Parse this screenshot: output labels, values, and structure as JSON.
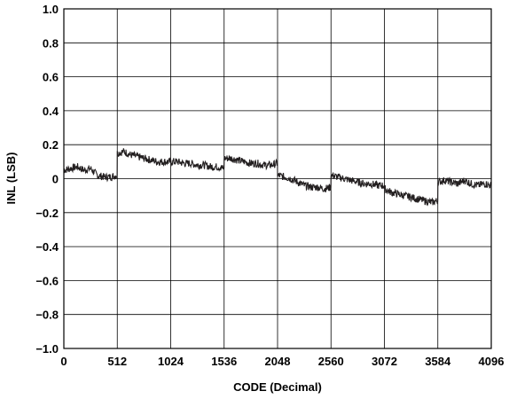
{
  "chart_data": {
    "type": "line",
    "title": "",
    "xlabel": "CODE (Decimal)",
    "ylabel": "INL (LSB)",
    "xlim": [
      0,
      4096
    ],
    "ylim": [
      -1.0,
      1.0
    ],
    "grid": true,
    "x_ticks": [
      0,
      512,
      1024,
      1536,
      2048,
      2560,
      3072,
      3584,
      4096
    ],
    "x_tick_labels": [
      "0",
      "512",
      "1024",
      "1536",
      "2048",
      "2560",
      "3072",
      "3584",
      "4096"
    ],
    "y_ticks": [
      -1.0,
      -0.8,
      -0.6,
      -0.4,
      -0.2,
      0,
      0.2,
      0.4,
      0.6,
      0.8,
      1.0
    ],
    "y_tick_labels": [
      "−1.0",
      "−0.8",
      "−0.6",
      "−0.4",
      "−0.2",
      "0",
      "0.2",
      "0.4",
      "0.6",
      "0.8",
      "1.0"
    ],
    "series": [
      {
        "color": "#231f20",
        "x": [
          0,
          64,
          128,
          192,
          256,
          320,
          384,
          448,
          511,
          512,
          576,
          640,
          704,
          768,
          832,
          896,
          960,
          1024,
          1088,
          1152,
          1216,
          1280,
          1344,
          1408,
          1472,
          1535,
          1536,
          1600,
          1664,
          1728,
          1792,
          1856,
          1920,
          1984,
          2047,
          2048,
          2112,
          2176,
          2240,
          2304,
          2368,
          2432,
          2496,
          2559,
          2560,
          2624,
          2688,
          2752,
          2816,
          2880,
          2944,
          3008,
          3071,
          3072,
          3136,
          3200,
          3264,
          3328,
          3392,
          3456,
          3520,
          3583,
          3584,
          3648,
          3712,
          3776,
          3840,
          3904,
          3968,
          4032,
          4096
        ],
        "y": [
          0.05,
          0.06,
          0.07,
          0.05,
          0.06,
          0.02,
          0.01,
          0.01,
          0.02,
          0.15,
          0.16,
          0.14,
          0.13,
          0.12,
          0.11,
          0.1,
          0.1,
          0.1,
          0.1,
          0.09,
          0.09,
          0.08,
          0.08,
          0.07,
          0.07,
          0.06,
          0.12,
          0.12,
          0.11,
          0.1,
          0.09,
          0.09,
          0.08,
          0.08,
          0.09,
          0.02,
          0.01,
          0.0,
          -0.02,
          -0.04,
          -0.05,
          -0.05,
          -0.06,
          -0.05,
          0.02,
          0.01,
          0.0,
          -0.01,
          -0.02,
          -0.03,
          -0.03,
          -0.04,
          -0.04,
          -0.06,
          -0.08,
          -0.09,
          -0.1,
          -0.11,
          -0.12,
          -0.13,
          -0.14,
          -0.13,
          -0.02,
          -0.01,
          -0.02,
          -0.03,
          -0.01,
          -0.03,
          -0.04,
          -0.03,
          -0.04
        ]
      }
    ]
  }
}
